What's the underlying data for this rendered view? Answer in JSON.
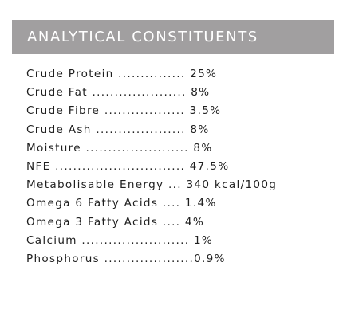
{
  "header": {
    "title": "ANALYTICAL CONSTITUENTS"
  },
  "constituents": [
    {
      "text": "Crude Protein ............... 25%"
    },
    {
      "text": "Crude Fat ..................... 8%"
    },
    {
      "text": "Crude Fibre .................. 3.5%"
    },
    {
      "text": "Crude Ash .................... 8%"
    },
    {
      "text": "Moisture ....................... 8%"
    },
    {
      "text": "NFE ............................. 47.5%"
    },
    {
      "text": "Metabolisable Energy ... 340 kcal/100g"
    },
    {
      "text": "Omega 6 Fatty Acids .... 1.4%"
    },
    {
      "text": "Omega 3 Fatty Acids .... 4%"
    },
    {
      "text": "Calcium ........................ 1%"
    },
    {
      "text": "Phosphorus ....................0.9%"
    }
  ]
}
